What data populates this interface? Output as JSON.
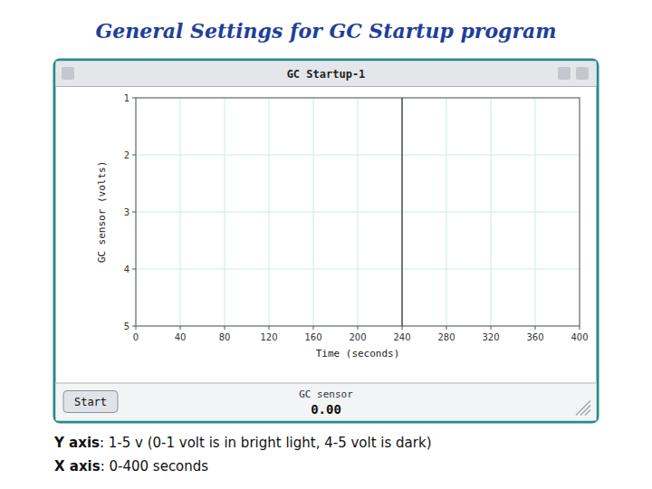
{
  "chart_data": {
    "type": "line",
    "title": "General Settings for GC Startup program",
    "window_title": "GC Startup-1",
    "xlabel": "Time (seconds)",
    "ylabel": "GC sensor (volts)",
    "start_button": "Start",
    "sensor_label": "GC sensor",
    "sensor_value": "0.00",
    "xlim": [
      0,
      400
    ],
    "xticks": [
      0,
      40,
      80,
      120,
      160,
      200,
      240,
      280,
      320,
      360,
      400
    ],
    "ylim": [
      5,
      1
    ],
    "yticks": [
      1,
      2,
      3,
      4,
      5
    ],
    "grid": true,
    "cursor_x": 240,
    "annotations": [
      "Y axis",
      ": 1-5 v (0-1 volt is in bright light, 4-5 volt is dark)",
      "X axis",
      ": 0-400 seconds"
    ]
  }
}
